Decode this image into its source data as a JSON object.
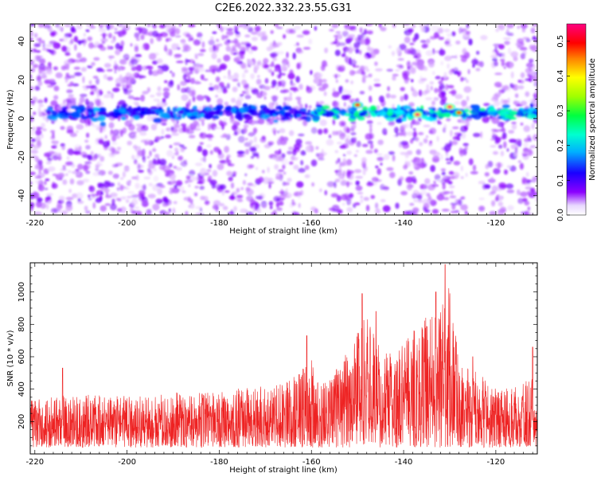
{
  "figure": {
    "title": "C2E6.2022.332.23.55.G31"
  },
  "chart_data": [
    {
      "type": "heatmap",
      "title": "",
      "xlabel": "Height of straight line (km)",
      "ylabel": "Frequency (Hz)",
      "xlim": [
        -221,
        -111
      ],
      "ylim": [
        -50,
        49
      ],
      "xticks": [
        -220,
        -200,
        -180,
        -160,
        -140,
        -120
      ],
      "yticks": [
        -40,
        -20,
        0,
        20,
        40
      ],
      "colorbar": {
        "label": "Normalized spectral amplitude",
        "range": [
          0,
          0.55
        ],
        "ticks": [
          0.0,
          0.1,
          0.2,
          0.3,
          0.4,
          0.5
        ],
        "colormap": [
          "#ffffff",
          "#8b00ff",
          "#0000ff",
          "#00ffff",
          "#00ff00",
          "#ffff00",
          "#ff0000",
          "#ff0080"
        ]
      },
      "features": [
        {
          "kind": "ridge",
          "x": [
            -217,
            -111
          ],
          "y": 3,
          "note": "dominant line near +3 Hz"
        },
        {
          "kind": "blob",
          "x": -150,
          "y": 7,
          "value": 0.5
        },
        {
          "kind": "blob",
          "x": -137,
          "y": 2,
          "value": 0.55
        },
        {
          "kind": "blob",
          "x": -130,
          "y": 6,
          "value": 0.55
        },
        {
          "kind": "blob",
          "x": -128,
          "y": 3,
          "value": 0.45
        }
      ]
    },
    {
      "type": "line",
      "title": "",
      "xlabel": "Height of straight line (km)",
      "ylabel": "SNR (10 * v/v)",
      "xlim": [
        -221,
        -111
      ],
      "ylim": [
        0,
        1180
      ],
      "xticks": [
        -220,
        -200,
        -180,
        -160,
        -140,
        -120
      ],
      "yticks": [
        200,
        400,
        600,
        800,
        1000
      ],
      "series": [
        {
          "color": "#ee2222",
          "envelope_x": [
            -221,
            -215,
            -210,
            -205,
            -200,
            -195,
            -190,
            -185,
            -180,
            -175,
            -170,
            -165,
            -162,
            -160,
            -158,
            -155,
            -150,
            -148,
            -145,
            -142,
            -140,
            -137,
            -135,
            -132,
            -130,
            -128,
            -125,
            -122,
            -120,
            -115,
            -112,
            -111
          ],
          "envelope_y": [
            330,
            360,
            370,
            360,
            360,
            360,
            380,
            380,
            380,
            410,
            420,
            450,
            530,
            600,
            420,
            500,
            760,
            880,
            640,
            620,
            700,
            830,
            870,
            940,
            1050,
            560,
            520,
            460,
            400,
            420,
            480,
            440
          ],
          "peaks": [
            {
              "x": -214,
              "y": 530
            },
            {
              "x": -161,
              "y": 730
            },
            {
              "x": -149,
              "y": 990
            },
            {
              "x": -146,
              "y": 880
            },
            {
              "x": -133,
              "y": 1000
            },
            {
              "x": -131,
              "y": 1170
            },
            {
              "x": -125,
              "y": 600
            },
            {
              "x": -112,
              "y": 660
            }
          ]
        }
      ]
    }
  ]
}
